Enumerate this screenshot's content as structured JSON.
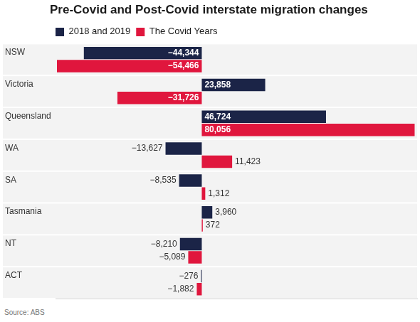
{
  "chart_data": {
    "type": "bar",
    "orientation": "horizontal",
    "title": "Pre-Covid and Post-Covid interstate migration changes",
    "source": "Source: ABS",
    "categories": [
      "NSW",
      "Victoria",
      "Queensland",
      "WA",
      "SA",
      "Tasmania",
      "NT",
      "ACT"
    ],
    "series": [
      {
        "name": "2018 and 2019",
        "color": "#1b2447",
        "values": [
          -44344,
          23858,
          46724,
          -13627,
          -8535,
          3960,
          -8210,
          -276
        ],
        "value_labels": [
          "−44,344",
          "23,858",
          "46,724",
          "−13,627",
          "−8,535",
          "3,960",
          "−8,210",
          "−276"
        ]
      },
      {
        "name": "The Covid Years",
        "color": "#e0163d",
        "values": [
          -54466,
          -31726,
          80056,
          11423,
          1312,
          372,
          -5089,
          -1882
        ],
        "value_labels": [
          "−54,466",
          "−31,726",
          "80,056",
          "11,423",
          "1,312",
          "372",
          "−5,089",
          "−1,882"
        ]
      }
    ],
    "xlim": [
      -55000,
      81000
    ],
    "grid": false,
    "tick_labels": false,
    "legend": "top-left",
    "data_labels": true
  }
}
